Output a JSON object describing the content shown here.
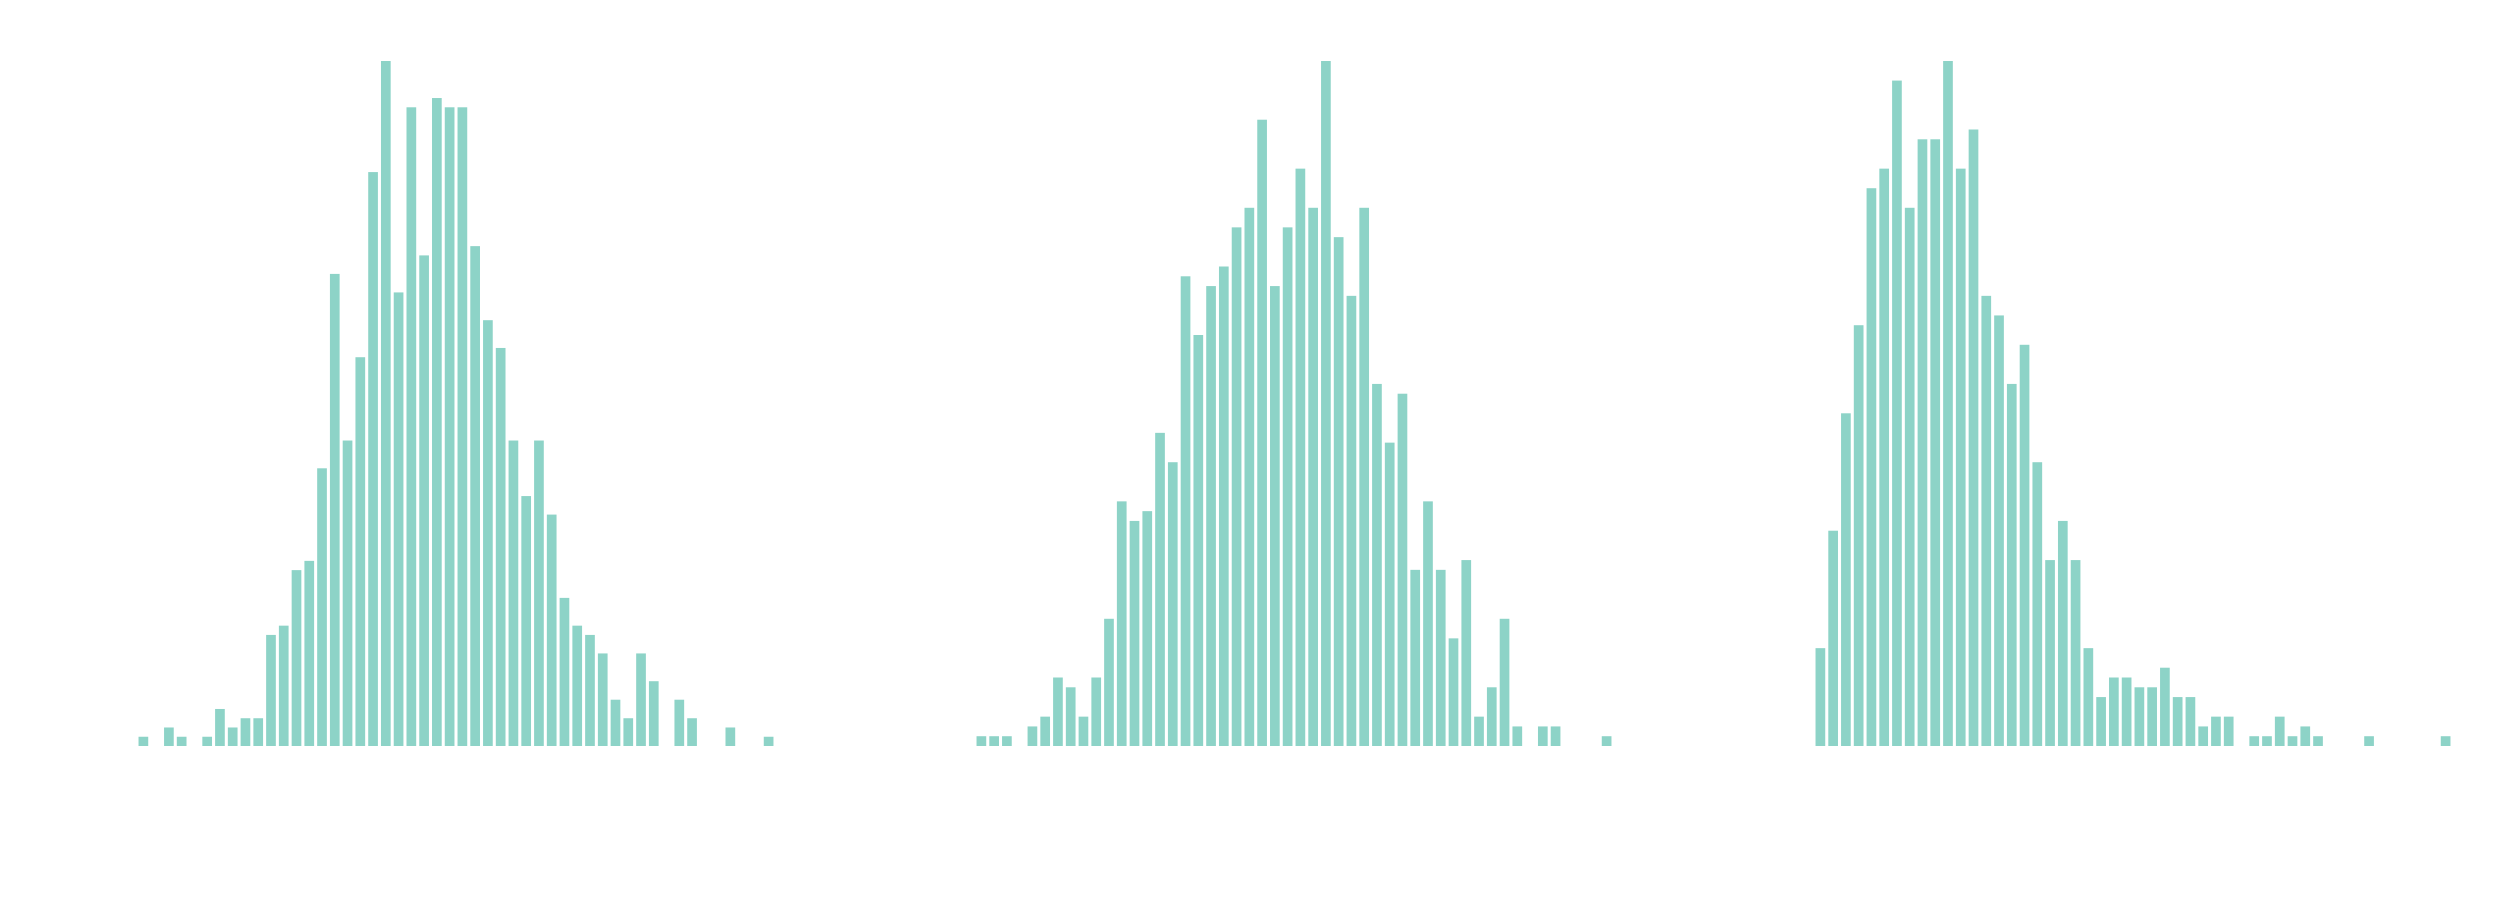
{
  "chart_data": [
    {
      "type": "bar",
      "color": "#8dd3c7",
      "ylim": [
        0,
        74
      ],
      "categories": [
        null,
        null,
        null,
        null,
        null,
        null,
        null,
        null,
        null,
        null,
        null,
        null,
        null,
        null,
        null,
        null,
        null,
        null,
        null,
        null,
        null,
        null,
        null,
        null,
        null,
        null,
        null,
        null,
        null,
        null,
        null,
        null,
        null,
        null,
        null,
        null,
        null,
        null,
        null,
        null,
        null,
        null,
        null,
        null,
        null,
        null,
        null,
        null,
        null,
        null
      ],
      "values": [
        1,
        0,
        2,
        1,
        0,
        1,
        4,
        2,
        3,
        3,
        12,
        13,
        19,
        20,
        30,
        51,
        33,
        42,
        62,
        74,
        49,
        69,
        53,
        70,
        69,
        69,
        54,
        46,
        43,
        33,
        27,
        33,
        25,
        16,
        13,
        12,
        10,
        5,
        3,
        10,
        7,
        0,
        5,
        3,
        0,
        0,
        2,
        0,
        0,
        1
      ]
    },
    {
      "type": "bar",
      "color": "#8dd3c7",
      "ylim": [
        0,
        70
      ],
      "categories": [
        null,
        null,
        null,
        null,
        null,
        null,
        null,
        null,
        null,
        null,
        null,
        null,
        null,
        null,
        null,
        null,
        null,
        null,
        null,
        null,
        null,
        null,
        null,
        null,
        null,
        null,
        null,
        null,
        null,
        null,
        null,
        null,
        null,
        null,
        null,
        null,
        null,
        null,
        null,
        null,
        null,
        null,
        null,
        null,
        null,
        null,
        null,
        null,
        null,
        null
      ],
      "values": [
        1,
        1,
        1,
        0,
        2,
        3,
        7,
        6,
        3,
        7,
        13,
        25,
        23,
        24,
        32,
        29,
        48,
        42,
        47,
        49,
        53,
        55,
        64,
        47,
        53,
        59,
        55,
        70,
        52,
        46,
        55,
        37,
        31,
        36,
        18,
        25,
        18,
        11,
        19,
        3,
        6,
        13,
        2,
        0,
        2,
        2,
        0,
        0,
        0,
        1
      ]
    },
    {
      "type": "bar",
      "color": "#8dd3c7",
      "ylim": [
        0,
        70
      ],
      "categories": [
        null,
        null,
        null,
        null,
        null,
        null,
        null,
        null,
        null,
        null,
        null,
        null,
        null,
        null,
        null,
        null,
        null,
        null,
        null,
        null,
        null,
        null,
        null,
        null,
        null,
        null,
        null,
        null,
        null,
        null,
        null,
        null,
        null,
        null,
        null,
        null,
        null,
        null,
        null,
        null,
        null,
        null,
        null,
        null,
        null,
        null,
        null,
        null,
        null,
        null
      ],
      "values": [
        10,
        22,
        34,
        43,
        57,
        59,
        68,
        55,
        62,
        62,
        70,
        59,
        63,
        46,
        44,
        37,
        41,
        29,
        19,
        23,
        19,
        10,
        5,
        7,
        7,
        6,
        6,
        8,
        5,
        5,
        2,
        3,
        3,
        0,
        1,
        1,
        3,
        1,
        2,
        1,
        0,
        0,
        0,
        1,
        0,
        0,
        0,
        0,
        0,
        1
      ]
    }
  ]
}
